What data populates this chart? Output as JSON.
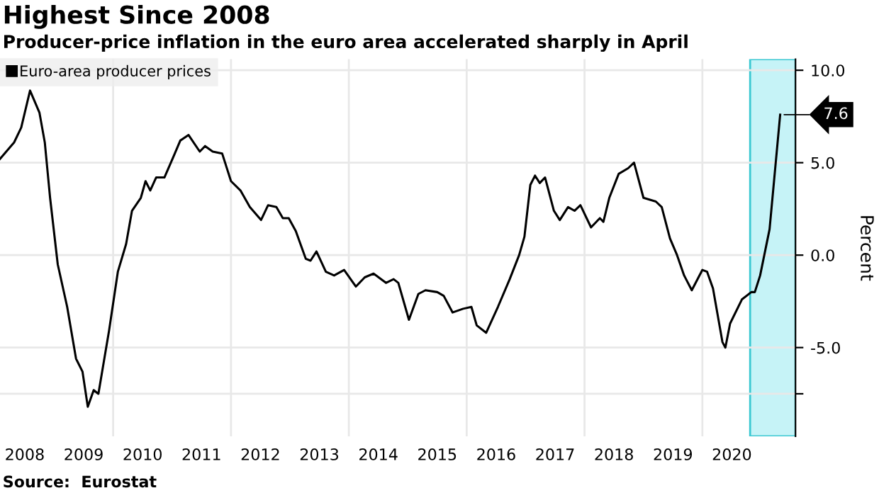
{
  "chart_data": {
    "type": "line",
    "title": "Highest Since 2008",
    "subtitle": "Producer-price inflation in the euro area accelerated sharply in April",
    "ylabel": "Percent",
    "annotations": [
      {
        "text": "7.6",
        "x": 2021.32,
        "y": 7.6
      },
      "Source:  Eurostat"
    ],
    "x": [
      2008.08,
      2008.32,
      2008.44,
      2008.59,
      2008.75,
      2008.84,
      2008.93,
      2009.06,
      2009.22,
      2009.37,
      2009.48,
      2009.57,
      2009.67,
      2009.75,
      2009.93,
      2010.08,
      2010.22,
      2010.32,
      2010.47,
      2010.55,
      2010.63,
      2010.73,
      2010.87,
      2011.02,
      2011.14,
      2011.28,
      2011.47,
      2011.56,
      2011.69,
      2011.85,
      2012.0,
      2012.16,
      2012.32,
      2012.51,
      2012.63,
      2012.77,
      2012.88,
      2012.98,
      2013.1,
      2013.27,
      2013.35,
      2013.45,
      2013.61,
      2013.75,
      2013.92,
      2014.12,
      2014.27,
      2014.42,
      2014.63,
      2014.76,
      2014.84,
      2015.02,
      2015.18,
      2015.3,
      2015.5,
      2015.61,
      2015.76,
      2015.94,
      2016.08,
      2016.17,
      2016.33,
      2016.53,
      2016.73,
      2016.89,
      2016.98,
      2017.08,
      2017.16,
      2017.24,
      2017.33,
      2017.48,
      2017.58,
      2017.72,
      2017.83,
      2017.93,
      2018.11,
      2018.26,
      2018.32,
      2018.42,
      2018.58,
      2018.74,
      2018.84,
      2019.0,
      2019.21,
      2019.31,
      2019.45,
      2019.57,
      2019.69,
      2019.82,
      2020.0,
      2020.08,
      2020.18,
      2020.34,
      2020.39,
      2020.47,
      2020.67,
      2020.83,
      2020.89,
      2020.98,
      2021.14,
      2021.32
    ],
    "series": [
      {
        "name": "Euro-area producer prices",
        "color": "#000000",
        "values": [
          5.2,
          6.1,
          6.9,
          8.9,
          7.7,
          6.1,
          3.1,
          -0.5,
          -2.8,
          -5.6,
          -6.3,
          -8.2,
          -7.3,
          -7.5,
          -4.1,
          -0.9,
          0.6,
          2.4,
          3.1,
          4.0,
          3.5,
          4.2,
          4.2,
          5.3,
          6.2,
          6.5,
          5.6,
          5.9,
          5.6,
          5.5,
          4.0,
          3.5,
          2.6,
          1.9,
          2.7,
          2.6,
          2.0,
          2.0,
          1.3,
          -0.2,
          -0.3,
          0.2,
          -0.9,
          -1.1,
          -0.8,
          -1.7,
          -1.2,
          -1.0,
          -1.5,
          -1.3,
          -1.5,
          -3.5,
          -2.1,
          -1.9,
          -2.0,
          -2.2,
          -3.1,
          -2.9,
          -2.8,
          -3.8,
          -4.2,
          -2.8,
          -1.3,
          0.0,
          1.0,
          3.8,
          4.3,
          3.9,
          4.2,
          2.4,
          1.9,
          2.6,
          2.4,
          2.7,
          1.5,
          2.0,
          1.8,
          3.1,
          4.4,
          4.7,
          5.0,
          3.1,
          2.9,
          2.6,
          0.9,
          0.0,
          -1.1,
          -1.9,
          -0.8,
          -0.9,
          -1.8,
          -4.7,
          -5.0,
          -3.7,
          -2.4,
          -2.0,
          -2.0,
          -1.1,
          1.4,
          7.6
        ]
      }
    ],
    "xlim": [
      2008.08,
      2021.58
    ],
    "xticks": [
      {
        "value": 2008.5,
        "label": "2008"
      },
      {
        "value": 2009.5,
        "label": "2009"
      },
      {
        "value": 2010.5,
        "label": "2010"
      },
      {
        "value": 2011.5,
        "label": "2011"
      },
      {
        "value": 2012.5,
        "label": "2012"
      },
      {
        "value": 2013.5,
        "label": "2013"
      },
      {
        "value": 2014.5,
        "label": "2014"
      },
      {
        "value": 2015.5,
        "label": "2015"
      },
      {
        "value": 2016.5,
        "label": "2016"
      },
      {
        "value": 2017.5,
        "label": "2017"
      },
      {
        "value": 2018.5,
        "label": "2018"
      },
      {
        "value": 2019.5,
        "label": "2019"
      },
      {
        "value": 2020.5,
        "label": "2020"
      },
      {
        "value": 2010,
        "label": null
      },
      {
        "value": 2012,
        "label": null
      },
      {
        "value": 2014,
        "label": null
      },
      {
        "value": 2016,
        "label": null
      },
      {
        "value": 2018,
        "label": null
      },
      {
        "value": 2020,
        "label": null
      }
    ],
    "ylim": [
      -9.8,
      10.6
    ],
    "yticks": [
      {
        "value": -7.5,
        "label": null
      },
      {
        "value": -5,
        "label": "-5.0"
      },
      {
        "value": 0,
        "label": "0.0"
      },
      {
        "value": 5,
        "label": "5.0"
      },
      {
        "value": 10,
        "label": "10.0"
      }
    ],
    "bands": [
      {
        "axis": "x",
        "from": 2020.81,
        "to": 2021.58,
        "color": "#c6f3f7"
      }
    ],
    "grid": true,
    "legend": "top left",
    "line_style": "solid",
    "marker": "none"
  }
}
